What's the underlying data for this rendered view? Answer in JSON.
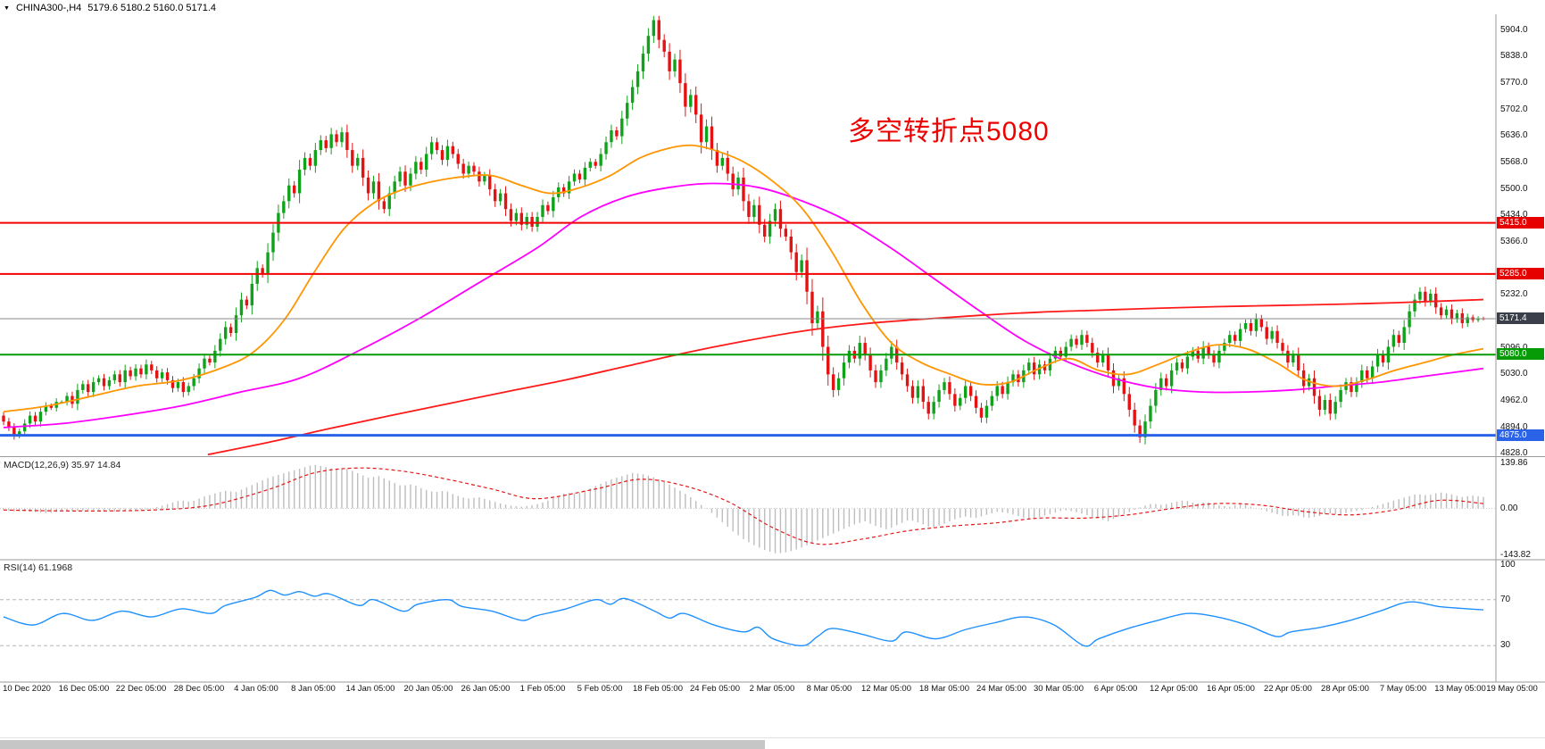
{
  "header": {
    "dropdown_icon": "▼",
    "symbol": "CHINA300-,H4",
    "ohlc": [
      "5179.6",
      "5180.2",
      "5160.0",
      "5171.4"
    ]
  },
  "annotation": {
    "text": "多空转折点5080",
    "color": "#ee0000"
  },
  "indicators": {
    "macd_label": "MACD(12,26,9) 35.97 14.84",
    "rsi_label": "RSI(14) 61.1968"
  },
  "colors": {
    "up": "#10a21b",
    "down": "#e41212",
    "ma_fast": "#ff9500",
    "ma_mid": "#ff00ff",
    "ma_slow": "#ff1a1a",
    "macd_hist": "#bdbdbd",
    "macd_signal": "#e41717",
    "rsi_line": "#1e90ff",
    "axis_text": "#111111",
    "divider": "#9a9a9a"
  },
  "chart_data": {
    "type": "candlestick",
    "symbol": "CHINA300-",
    "timeframe": "H4",
    "current_ohlc": {
      "open": 5179.6,
      "high": 5180.2,
      "low": 5160.0,
      "close": 5171.4
    },
    "price_range": [
      4822,
      5945
    ],
    "y_ticks": [
      5904,
      5838,
      5770,
      5702,
      5636,
      5568,
      5500,
      5434,
      5366,
      5232,
      5096,
      5030,
      4962,
      4894,
      4828
    ],
    "price_tags": [
      {
        "label": "5415.0",
        "price": 5415,
        "bg": "#e60000"
      },
      {
        "label": "5285.0",
        "price": 5285,
        "bg": "#e60000"
      },
      {
        "label": "5171.4",
        "price": 5171.4,
        "bg": "#3a3f4a"
      },
      {
        "label": "5080.0",
        "price": 5080,
        "bg": "#079b07"
      },
      {
        "label": "4875.0",
        "price": 4875,
        "bg": "#2a62e8"
      }
    ],
    "levels": [
      {
        "price": 5415,
        "color": "#f40000",
        "width": 2,
        "name": "resistance-5415"
      },
      {
        "price": 5285,
        "color": "#f40000",
        "width": 2,
        "name": "resistance-5285"
      },
      {
        "price": 5171.4,
        "color": "#8a8a8a",
        "width": 1,
        "name": "current-price-line"
      },
      {
        "price": 5080,
        "color": "#079b07",
        "width": 2,
        "name": "pivot-5080"
      },
      {
        "price": 4875,
        "color": "#2a62e8",
        "width": 3,
        "name": "support-4875"
      }
    ],
    "closes": [
      4910,
      4895,
      4875,
      4885,
      4905,
      4925,
      4910,
      4935,
      4950,
      4945,
      4960,
      4960,
      4975,
      4955,
      4990,
      5005,
      4985,
      5010,
      5020,
      5000,
      5015,
      5030,
      5010,
      5040,
      5025,
      5045,
      5030,
      5055,
      5040,
      5020,
      5035,
      5015,
      4995,
      5010,
      4985,
      5000,
      5020,
      5045,
      5070,
      5060,
      5090,
      5120,
      5150,
      5135,
      5180,
      5220,
      5205,
      5260,
      5300,
      5285,
      5340,
      5390,
      5440,
      5470,
      5510,
      5490,
      5550,
      5580,
      5560,
      5600,
      5625,
      5605,
      5640,
      5620,
      5645,
      5600,
      5560,
      5580,
      5530,
      5490,
      5520,
      5470,
      5450,
      5490,
      5520,
      5545,
      5510,
      5540,
      5570,
      5550,
      5590,
      5620,
      5600,
      5575,
      5610,
      5590,
      5565,
      5540,
      5560,
      5545,
      5520,
      5535,
      5500,
      5470,
      5490,
      5450,
      5420,
      5440,
      5410,
      5430,
      5405,
      5430,
      5460,
      5445,
      5480,
      5505,
      5490,
      5520,
      5540,
      5525,
      5555,
      5570,
      5560,
      5590,
      5620,
      5650,
      5635,
      5680,
      5720,
      5760,
      5800,
      5845,
      5890,
      5930,
      5880,
      5850,
      5800,
      5830,
      5770,
      5710,
      5740,
      5690,
      5620,
      5660,
      5600,
      5560,
      5580,
      5540,
      5500,
      5530,
      5470,
      5430,
      5460,
      5410,
      5380,
      5420,
      5450,
      5400,
      5380,
      5340,
      5290,
      5320,
      5240,
      5160,
      5190,
      5100,
      5030,
      4990,
      5020,
      5060,
      5090,
      5070,
      5110,
      5080,
      5040,
      5010,
      5040,
      5070,
      5100,
      5060,
      5030,
      5000,
      4970,
      5000,
      4960,
      4930,
      4960,
      4990,
      5010,
      4980,
      4950,
      4970,
      5000,
      4975,
      4945,
      4920,
      4950,
      4975,
      5000,
      4980,
      5010,
      5030,
      5010,
      5040,
      5060,
      5030,
      5055,
      5040,
      5070,
      5090,
      5075,
      5100,
      5120,
      5105,
      5130,
      5110,
      5085,
      5060,
      5080,
      5040,
      5000,
      5020,
      4980,
      4940,
      4900,
      4870,
      4910,
      4950,
      4990,
      5020,
      5000,
      5040,
      5060,
      5045,
      5075,
      5090,
      5070,
      5100,
      5080,
      5060,
      5090,
      5110,
      5130,
      5115,
      5145,
      5160,
      5140,
      5170,
      5150,
      5120,
      5140,
      5110,
      5090,
      5060,
      5080,
      5040,
      5000,
      5020,
      4975,
      4940,
      4965,
      4930,
      4960,
      4990,
      5010,
      4985,
      5010,
      5040,
      5020,
      5050,
      5080,
      5060,
      5100,
      5130,
      5110,
      5150,
      5190,
      5220,
      5240,
      5215,
      5235,
      5200,
      5180,
      5195,
      5170,
      5185,
      5160,
      5175,
      5168,
      5172,
      5171.4
    ],
    "ma_fast": [
      [
        0,
        4935
      ],
      [
        0.03,
        4950
      ],
      [
        0.06,
        4975
      ],
      [
        0.09,
        5000
      ],
      [
        0.12,
        5015
      ],
      [
        0.15,
        5050
      ],
      [
        0.17,
        5090
      ],
      [
        0.19,
        5170
      ],
      [
        0.21,
        5290
      ],
      [
        0.23,
        5400
      ],
      [
        0.25,
        5465
      ],
      [
        0.27,
        5500
      ],
      [
        0.29,
        5520
      ],
      [
        0.31,
        5532
      ],
      [
        0.33,
        5535
      ],
      [
        0.35,
        5510
      ],
      [
        0.37,
        5490
      ],
      [
        0.39,
        5505
      ],
      [
        0.41,
        5535
      ],
      [
        0.43,
        5580
      ],
      [
        0.45,
        5605
      ],
      [
        0.465,
        5612
      ],
      [
        0.48,
        5600
      ],
      [
        0.5,
        5570
      ],
      [
        0.52,
        5520
      ],
      [
        0.54,
        5450
      ],
      [
        0.56,
        5340
      ],
      [
        0.58,
        5210
      ],
      [
        0.6,
        5110
      ],
      [
        0.62,
        5060
      ],
      [
        0.64,
        5030
      ],
      [
        0.66,
        5005
      ],
      [
        0.68,
        5010
      ],
      [
        0.7,
        5045
      ],
      [
        0.72,
        5070
      ],
      [
        0.74,
        5040
      ],
      [
        0.76,
        5030
      ],
      [
        0.78,
        5055
      ],
      [
        0.8,
        5085
      ],
      [
        0.82,
        5105
      ],
      [
        0.84,
        5095
      ],
      [
        0.86,
        5060
      ],
      [
        0.88,
        5015
      ],
      [
        0.9,
        5000
      ],
      [
        0.92,
        5015
      ],
      [
        0.94,
        5040
      ],
      [
        0.96,
        5060
      ],
      [
        0.98,
        5080
      ],
      [
        1,
        5095
      ]
    ],
    "ma_mid": [
      [
        0,
        4895
      ],
      [
        0.04,
        4905
      ],
      [
        0.08,
        4925
      ],
      [
        0.12,
        4950
      ],
      [
        0.16,
        4985
      ],
      [
        0.2,
        5020
      ],
      [
        0.24,
        5090
      ],
      [
        0.28,
        5170
      ],
      [
        0.32,
        5260
      ],
      [
        0.36,
        5350
      ],
      [
        0.39,
        5430
      ],
      [
        0.42,
        5480
      ],
      [
        0.45,
        5505
      ],
      [
        0.48,
        5515
      ],
      [
        0.51,
        5505
      ],
      [
        0.54,
        5470
      ],
      [
        0.57,
        5420
      ],
      [
        0.6,
        5350
      ],
      [
        0.63,
        5270
      ],
      [
        0.66,
        5190
      ],
      [
        0.69,
        5115
      ],
      [
        0.72,
        5060
      ],
      [
        0.75,
        5020
      ],
      [
        0.78,
        4995
      ],
      [
        0.81,
        4985
      ],
      [
        0.84,
        4985
      ],
      [
        0.87,
        4990
      ],
      [
        0.9,
        5000
      ],
      [
        0.93,
        5010
      ],
      [
        0.96,
        5025
      ],
      [
        1,
        5045
      ]
    ],
    "ma_slow": [
      [
        0.138,
        4826
      ],
      [
        0.18,
        4858
      ],
      [
        0.22,
        4892
      ],
      [
        0.26,
        4924
      ],
      [
        0.3,
        4955
      ],
      [
        0.34,
        4986
      ],
      [
        0.38,
        5016
      ],
      [
        0.42,
        5050
      ],
      [
        0.46,
        5084
      ],
      [
        0.5,
        5114
      ],
      [
        0.54,
        5140
      ],
      [
        0.58,
        5158
      ],
      [
        0.62,
        5170
      ],
      [
        0.66,
        5180
      ],
      [
        0.7,
        5188
      ],
      [
        0.74,
        5193
      ],
      [
        0.78,
        5198
      ],
      [
        0.82,
        5202
      ],
      [
        0.86,
        5205
      ],
      [
        0.9,
        5208
      ],
      [
        0.94,
        5212
      ],
      [
        1,
        5220
      ]
    ],
    "macd": {
      "range": [
        -156,
        156
      ],
      "axis_ticks": [
        139.86,
        0,
        -143.82
      ],
      "values": {
        "macd": 35.97,
        "signal": 14.84
      },
      "histogram": [
        -5,
        -10,
        -8,
        -12,
        -15,
        -10,
        -6,
        -8,
        -4,
        -6,
        -10,
        -8,
        -5,
        -3,
        5,
        15,
        25,
        20,
        35,
        45,
        55,
        50,
        65,
        80,
        95,
        105,
        115,
        125,
        135,
        130,
        120,
        125,
        110,
        95,
        100,
        85,
        70,
        75,
        60,
        50,
        55,
        40,
        30,
        35,
        25,
        15,
        8,
        5,
        10,
        20,
        35,
        50,
        45,
        60,
        75,
        90,
        100,
        110,
        105,
        95,
        80,
        60,
        40,
        15,
        -10,
        -40,
        -70,
        -95,
        -115,
        -130,
        -140,
        -135,
        -125,
        -110,
        -95,
        -80,
        -65,
        -50,
        -40,
        -55,
        -65,
        -50,
        -35,
        -45,
        -60,
        -50,
        -35,
        -25,
        -30,
        -20,
        -10,
        -15,
        -25,
        -35,
        -25,
        -15,
        -5,
        -10,
        -20,
        -30,
        -40,
        -25,
        -10,
        5,
        15,
        10,
        20,
        25,
        15,
        20,
        10,
        5,
        15,
        5,
        -5,
        -15,
        -25,
        -20,
        -30,
        -25,
        -15,
        -20,
        -10,
        -5,
        5,
        15,
        25,
        35,
        45,
        40,
        50,
        45,
        35,
        40,
        36
      ],
      "signal_line": [
        [
          0,
          -5
        ],
        [
          0.05,
          -8
        ],
        [
          0.1,
          -5
        ],
        [
          0.14,
          10
        ],
        [
          0.18,
          60
        ],
        [
          0.21,
          110
        ],
        [
          0.24,
          125
        ],
        [
          0.27,
          115
        ],
        [
          0.3,
          90
        ],
        [
          0.33,
          60
        ],
        [
          0.36,
          30
        ],
        [
          0.4,
          60
        ],
        [
          0.43,
          90
        ],
        [
          0.46,
          70
        ],
        [
          0.49,
          20
        ],
        [
          0.52,
          -60
        ],
        [
          0.55,
          -110
        ],
        [
          0.58,
          -95
        ],
        [
          0.61,
          -70
        ],
        [
          0.64,
          -55
        ],
        [
          0.67,
          -45
        ],
        [
          0.7,
          -30
        ],
        [
          0.73,
          -30
        ],
        [
          0.76,
          -20
        ],
        [
          0.79,
          0
        ],
        [
          0.82,
          15
        ],
        [
          0.85,
          10
        ],
        [
          0.88,
          -10
        ],
        [
          0.91,
          -20
        ],
        [
          0.94,
          -5
        ],
        [
          0.97,
          25
        ],
        [
          1,
          15
        ]
      ]
    },
    "rsi": {
      "range": [
        0,
        100
      ],
      "axis_ticks": [
        100,
        70,
        30
      ],
      "levels": [
        70,
        30
      ],
      "value": 61.1968,
      "points": [
        [
          0,
          55
        ],
        [
          0.02,
          48
        ],
        [
          0.04,
          58
        ],
        [
          0.06,
          52
        ],
        [
          0.08,
          60
        ],
        [
          0.1,
          55
        ],
        [
          0.12,
          62
        ],
        [
          0.14,
          58
        ],
        [
          0.15,
          65
        ],
        [
          0.17,
          72
        ],
        [
          0.18,
          78
        ],
        [
          0.19,
          74
        ],
        [
          0.2,
          77
        ],
        [
          0.21,
          73
        ],
        [
          0.22,
          75
        ],
        [
          0.24,
          65
        ],
        [
          0.25,
          70
        ],
        [
          0.27,
          60
        ],
        [
          0.28,
          66
        ],
        [
          0.3,
          70
        ],
        [
          0.31,
          64
        ],
        [
          0.33,
          60
        ],
        [
          0.35,
          52
        ],
        [
          0.36,
          56
        ],
        [
          0.38,
          62
        ],
        [
          0.4,
          70
        ],
        [
          0.41,
          66
        ],
        [
          0.42,
          71
        ],
        [
          0.44,
          60
        ],
        [
          0.45,
          54
        ],
        [
          0.46,
          58
        ],
        [
          0.48,
          48
        ],
        [
          0.5,
          42
        ],
        [
          0.51,
          46
        ],
        [
          0.52,
          36
        ],
        [
          0.54,
          30
        ],
        [
          0.55,
          38
        ],
        [
          0.56,
          45
        ],
        [
          0.58,
          40
        ],
        [
          0.6,
          34
        ],
        [
          0.61,
          42
        ],
        [
          0.63,
          36
        ],
        [
          0.65,
          44
        ],
        [
          0.67,
          50
        ],
        [
          0.69,
          55
        ],
        [
          0.71,
          48
        ],
        [
          0.73,
          30
        ],
        [
          0.74,
          36
        ],
        [
          0.76,
          45
        ],
        [
          0.78,
          52
        ],
        [
          0.8,
          58
        ],
        [
          0.82,
          55
        ],
        [
          0.84,
          48
        ],
        [
          0.86,
          38
        ],
        [
          0.87,
          42
        ],
        [
          0.89,
          46
        ],
        [
          0.91,
          52
        ],
        [
          0.93,
          60
        ],
        [
          0.95,
          68
        ],
        [
          0.97,
          64
        ],
        [
          0.99,
          62
        ],
        [
          1,
          61.2
        ]
      ]
    },
    "x_ticks": [
      "10 Dec 2020",
      "16 Dec 05:00",
      "22 Dec 05:00",
      "28 Dec 05:00",
      "4 Jan 05:00",
      "8 Jan 05:00",
      "14 Jan 05:00",
      "20 Jan 05:00",
      "26 Jan 05:00",
      "1 Feb 05:00",
      "5 Feb 05:00",
      "18 Feb 05:00",
      "24 Feb 05:00",
      "2 Mar 05:00",
      "8 Mar 05:00",
      "12 Mar 05:00",
      "18 Mar 05:00",
      "24 Mar 05:00",
      "30 Mar 05:00",
      "6 Apr 05:00",
      "12 Apr 05:00",
      "16 Apr 05:00",
      "22 Apr 05:00",
      "28 Apr 05:00",
      "7 May 05:00",
      "13 May 05:00",
      "19 May 05:00"
    ]
  }
}
